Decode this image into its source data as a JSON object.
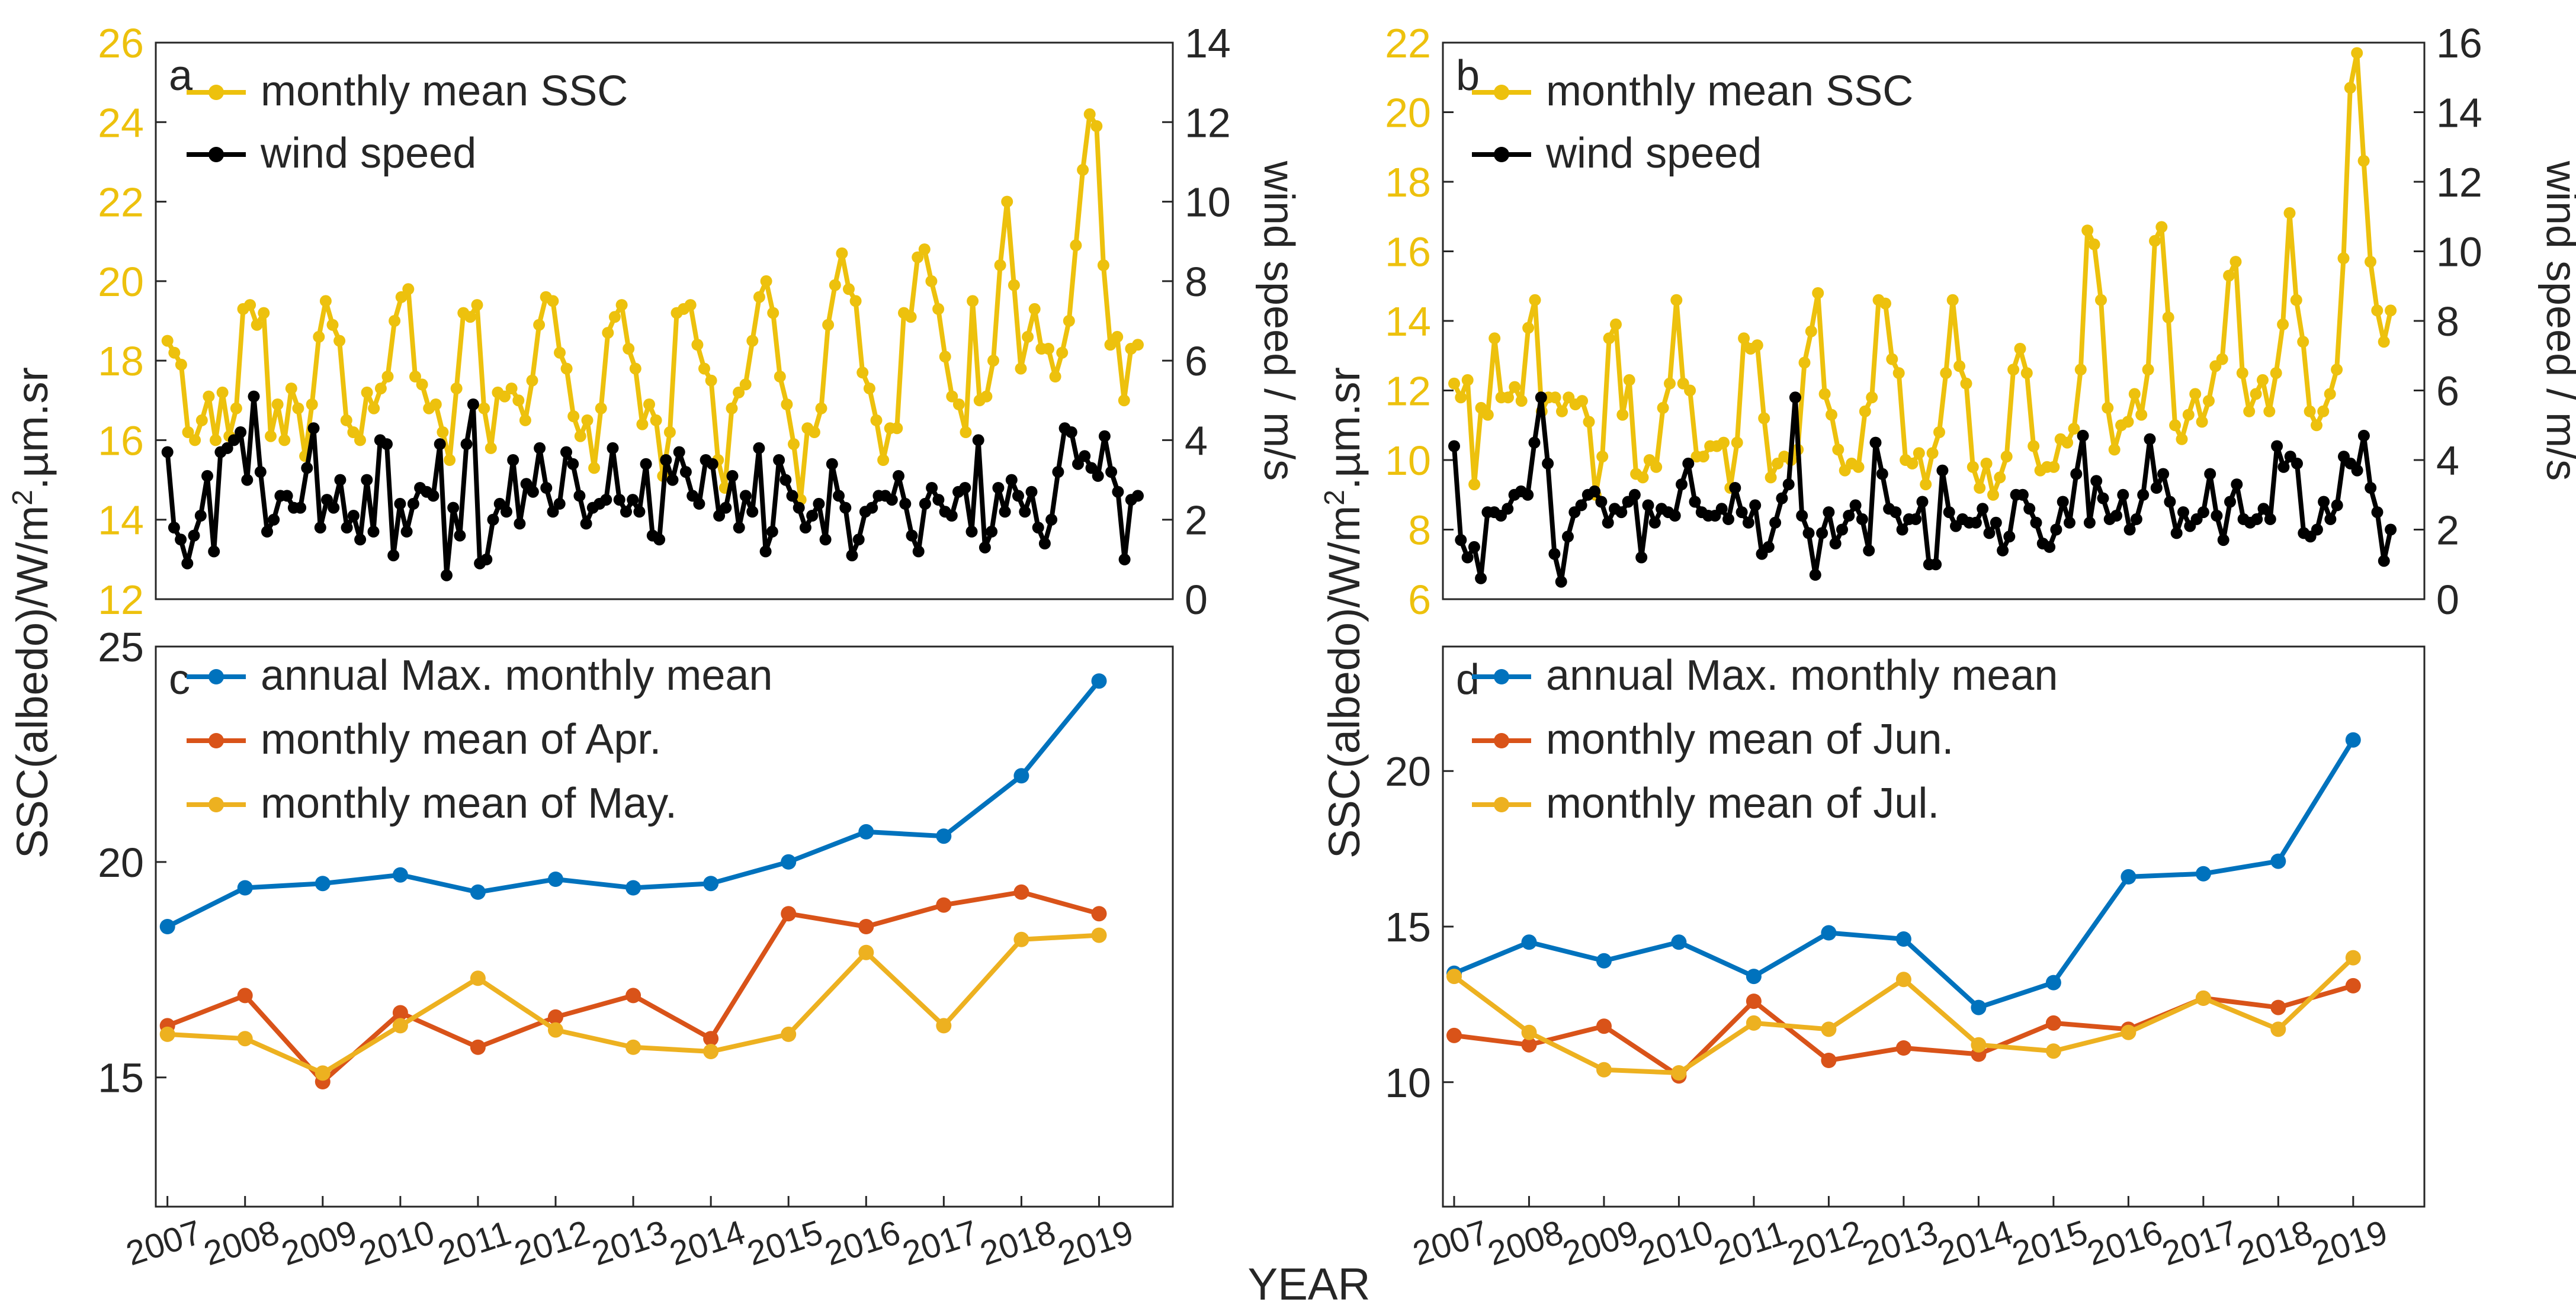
{
  "figure": {
    "xlabel": "YEAR",
    "ylabel": "SSC(albedo)/W/m2.µm.sr",
    "ylabel_main": "SSC(albedo)/W/m",
    "ylabel_sup": "2",
    "ylabel_tail": ".µm.sr",
    "years": [
      "2007",
      "2008",
      "2009",
      "2010",
      "2011",
      "2012",
      "2013",
      "2014",
      "2015",
      "2016",
      "2017",
      "2018",
      "2019"
    ]
  },
  "colors": {
    "ssc": "#EDC10D",
    "wind": "#000000",
    "max": "#0072BD",
    "jun_apr": "#D95319",
    "may_jul": "#EDB120",
    "axis": "#262626"
  },
  "chart_data": [
    {
      "panel": "a",
      "type": "line",
      "title": "",
      "x_range": [
        2006.85,
        2019.95
      ],
      "ylabel_left": "SSC(albedo)/W/m2.µm.sr",
      "ylabel_right": "wind speed / m/s",
      "ylim_left": [
        12,
        26
      ],
      "yticks_left": [
        12,
        14,
        16,
        18,
        20,
        22,
        24,
        26
      ],
      "ylim_right": [
        0,
        14
      ],
      "yticks_right": [
        0,
        2,
        4,
        6,
        8,
        10,
        12,
        14
      ],
      "legend": [
        "monthly mean SSC",
        "wind speed"
      ],
      "legend_location": "top-left",
      "series": [
        {
          "name": "monthly mean SSC",
          "axis": "left",
          "values": [
            18.5,
            18.2,
            17.9,
            16.2,
            16.0,
            16.5,
            17.1,
            16.0,
            17.2,
            16.1,
            16.8,
            19.3,
            19.4,
            18.9,
            19.2,
            16.1,
            16.9,
            16.0,
            17.3,
            16.8,
            15.6,
            16.9,
            18.6,
            19.5,
            18.9,
            18.5,
            16.5,
            16.2,
            16.0,
            17.2,
            16.8,
            17.3,
            17.6,
            19.0,
            19.6,
            19.8,
            17.6,
            17.4,
            16.8,
            16.9,
            16.2,
            15.5,
            17.3,
            19.2,
            19.1,
            19.4,
            16.8,
            15.8,
            17.2,
            17.1,
            17.3,
            17.0,
            16.5,
            17.5,
            18.9,
            19.6,
            19.5,
            18.2,
            17.8,
            16.6,
            16.1,
            16.5,
            15.3,
            16.8,
            18.7,
            19.1,
            19.4,
            18.3,
            17.8,
            16.4,
            16.9,
            16.5,
            15.1,
            16.2,
            19.2,
            19.3,
            19.4,
            18.4,
            17.8,
            17.5,
            15.5,
            14.8,
            16.8,
            17.2,
            17.4,
            18.5,
            19.6,
            20.0,
            19.2,
            17.6,
            16.9,
            15.9,
            14.5,
            16.3,
            16.2,
            16.8,
            18.9,
            19.9,
            20.7,
            19.8,
            19.5,
            17.7,
            17.3,
            16.5,
            15.5,
            16.3,
            16.3,
            19.2,
            19.1,
            20.6,
            20.8,
            20.0,
            19.3,
            18.1,
            17.1,
            16.9,
            16.2,
            19.5,
            17.0,
            17.1,
            18.0,
            20.4,
            22.0,
            19.9,
            17.8,
            18.6,
            19.3,
            18.3,
            18.3,
            17.6,
            18.2,
            19.0,
            20.9,
            22.8,
            24.2,
            23.9,
            20.4,
            18.4,
            18.6,
            17.0,
            18.3,
            18.4
          ]
        },
        {
          "name": "wind speed",
          "axis": "right",
          "values": [
            3.7,
            1.8,
            1.5,
            0.9,
            1.6,
            2.1,
            3.1,
            1.2,
            3.7,
            3.8,
            4.0,
            4.2,
            3.0,
            5.1,
            3.2,
            1.7,
            2.0,
            2.6,
            2.6,
            2.3,
            2.3,
            3.3,
            4.3,
            1.8,
            2.5,
            2.3,
            3.0,
            1.8,
            2.1,
            1.5,
            3.0,
            1.7,
            4.0,
            3.9,
            1.1,
            2.4,
            1.7,
            2.4,
            2.8,
            2.7,
            2.6,
            3.9,
            0.6,
            2.3,
            1.6,
            3.9,
            4.9,
            0.9,
            1.0,
            2.0,
            2.4,
            2.2,
            3.5,
            1.9,
            2.9,
            2.7,
            3.8,
            2.8,
            2.2,
            2.4,
            3.7,
            3.4,
            2.6,
            1.9,
            2.3,
            2.4,
            2.5,
            3.8,
            2.5,
            2.2,
            2.5,
            2.2,
            3.4,
            1.6,
            1.5,
            3.5,
            3.0,
            3.7,
            3.2,
            2.6,
            2.4,
            3.5,
            3.4,
            2.1,
            2.3,
            3.1,
            1.8,
            2.6,
            2.2,
            3.8,
            1.2,
            1.7,
            3.5,
            3.0,
            2.6,
            2.3,
            1.8,
            2.1,
            2.4,
            1.5,
            3.4,
            2.6,
            2.3,
            1.1,
            1.5,
            2.2,
            2.3,
            2.6,
            2.6,
            2.5,
            3.1,
            2.4,
            1.6,
            1.2,
            2.4,
            2.8,
            2.5,
            2.2,
            2.1,
            2.7,
            2.8,
            1.7,
            4.0,
            1.3,
            1.7,
            2.8,
            2.2,
            3.0,
            2.6,
            2.2,
            2.7,
            1.8,
            1.4,
            2.0,
            3.2,
            4.3,
            4.2,
            3.4,
            3.6,
            3.3,
            3.1,
            4.1,
            3.2,
            2.7,
            1.0,
            2.5,
            2.6
          ]
        }
      ]
    },
    {
      "panel": "b",
      "type": "line",
      "title": "",
      "x_range": [
        2006.85,
        2019.95
      ],
      "ylabel_left": "SSC(albedo)/W/m2.µm.sr",
      "ylabel_right": "wind speed / m/s",
      "ylim_left": [
        6,
        22
      ],
      "yticks_left": [
        6,
        8,
        10,
        12,
        14,
        16,
        18,
        20,
        22
      ],
      "ylim_right": [
        0,
        16
      ],
      "yticks_right": [
        0,
        2,
        4,
        6,
        8,
        10,
        12,
        14,
        16
      ],
      "legend": [
        "monthly mean SSC",
        "wind speed"
      ],
      "legend_location": "top-left",
      "series": [
        {
          "name": "monthly mean SSC",
          "axis": "left",
          "values": [
            12.2,
            11.8,
            12.3,
            9.3,
            11.5,
            11.3,
            13.5,
            11.8,
            11.8,
            12.1,
            11.7,
            13.8,
            14.6,
            11.4,
            11.8,
            11.8,
            11.4,
            11.8,
            11.6,
            11.7,
            11.1,
            9.0,
            10.1,
            13.5,
            13.9,
            11.3,
            12.3,
            9.6,
            9.5,
            10.0,
            9.8,
            11.5,
            12.2,
            14.6,
            12.2,
            12.0,
            10.1,
            10.1,
            10.4,
            10.4,
            10.5,
            9.2,
            10.5,
            13.5,
            13.2,
            13.3,
            11.2,
            9.5,
            9.9,
            10.1,
            10.0,
            10.3,
            12.8,
            13.7,
            14.8,
            11.9,
            11.3,
            10.3,
            9.7,
            9.9,
            9.8,
            11.4,
            11.8,
            14.6,
            14.5,
            12.9,
            12.5,
            10.0,
            9.9,
            10.2,
            9.3,
            10.2,
            10.8,
            12.5,
            14.6,
            12.7,
            12.2,
            9.8,
            9.2,
            9.9,
            9.0,
            9.5,
            10.1,
            12.6,
            13.2,
            12.5,
            10.4,
            9.7,
            9.8,
            9.8,
            10.6,
            10.5,
            10.9,
            12.6,
            16.6,
            16.2,
            14.6,
            11.5,
            10.3,
            11.0,
            11.1,
            11.9,
            11.3,
            12.6,
            16.3,
            16.7,
            14.1,
            11.0,
            10.6,
            11.3,
            11.9,
            11.1,
            11.7,
            12.7,
            12.9,
            15.3,
            15.7,
            12.5,
            11.4,
            11.9,
            12.3,
            11.4,
            12.5,
            13.9,
            17.1,
            14.6,
            13.4,
            11.4,
            11.0,
            11.4,
            11.9,
            12.6,
            15.8,
            20.7,
            21.7,
            18.6,
            15.7,
            14.3,
            13.4,
            14.3
          ]
        },
        {
          "name": "wind speed",
          "axis": "right",
          "values": [
            4.4,
            1.7,
            1.2,
            1.5,
            0.6,
            2.5,
            2.5,
            2.4,
            2.6,
            3.0,
            3.1,
            3.0,
            4.5,
            5.8,
            3.9,
            1.3,
            0.5,
            1.8,
            2.5,
            2.7,
            3.0,
            3.1,
            2.8,
            2.2,
            2.6,
            2.5,
            2.8,
            3.0,
            1.2,
            2.7,
            2.2,
            2.6,
            2.5,
            2.4,
            3.3,
            3.9,
            2.8,
            2.5,
            2.4,
            2.4,
            2.6,
            2.3,
            3.2,
            2.5,
            2.2,
            2.7,
            1.3,
            1.5,
            2.2,
            2.9,
            3.3,
            5.8,
            2.4,
            1.9,
            0.7,
            1.9,
            2.5,
            1.6,
            2.0,
            2.4,
            2.7,
            2.3,
            1.4,
            4.5,
            3.6,
            2.6,
            2.5,
            2.0,
            2.3,
            2.3,
            2.8,
            1.0,
            1.0,
            3.7,
            2.5,
            2.1,
            2.3,
            2.2,
            2.2,
            2.6,
            1.9,
            2.2,
            1.4,
            1.8,
            3.0,
            3.0,
            2.6,
            2.2,
            1.6,
            1.5,
            2.0,
            2.8,
            2.2,
            3.6,
            4.7,
            2.2,
            3.4,
            2.9,
            2.3,
            2.4,
            3.0,
            2.0,
            2.3,
            3.0,
            4.6,
            3.2,
            3.6,
            2.8,
            1.9,
            2.5,
            2.1,
            2.3,
            2.5,
            3.6,
            2.4,
            1.7,
            2.8,
            3.3,
            2.3,
            2.2,
            2.3,
            2.6,
            2.3,
            4.4,
            3.8,
            4.1,
            3.9,
            1.9,
            1.8,
            2.0,
            2.8,
            2.3,
            2.7,
            4.1,
            3.9,
            3.7,
            4.7,
            3.2,
            2.5,
            1.1,
            2.0
          ]
        }
      ]
    },
    {
      "panel": "c",
      "type": "line",
      "title": "",
      "x": [
        "2007",
        "2008",
        "2009",
        "2010",
        "2011",
        "2012",
        "2013",
        "2014",
        "2015",
        "2016",
        "2017",
        "2018",
        "2019"
      ],
      "x_range": [
        2006.85,
        2019.95
      ],
      "ylabel": "SSC(albedo)/W/m2.µm.sr",
      "ylim": [
        12,
        25
      ],
      "yticks": [
        15,
        20,
        25
      ],
      "legend": [
        "annual Max. monthly mean",
        "monthly mean of Apr.",
        "monthly mean of May."
      ],
      "legend_location": "top-left",
      "series": [
        {
          "name": "annual Max. monthly mean",
          "values": [
            18.5,
            19.4,
            19.5,
            19.7,
            19.3,
            19.6,
            19.4,
            19.5,
            20.0,
            20.7,
            20.6,
            22.0,
            24.2
          ]
        },
        {
          "name": "monthly mean of Apr.",
          "values": [
            16.2,
            16.9,
            14.9,
            16.5,
            15.7,
            16.4,
            16.9,
            15.9,
            18.8,
            18.5,
            19.0,
            19.3,
            18.8
          ]
        },
        {
          "name": "monthly mean of May.",
          "values": [
            16.0,
            15.9,
            15.1,
            16.2,
            17.3,
            16.1,
            15.7,
            15.6,
            16.0,
            17.9,
            16.2,
            18.2,
            18.3
          ]
        }
      ]
    },
    {
      "panel": "d",
      "type": "line",
      "title": "",
      "x": [
        "2007",
        "2008",
        "2009",
        "2010",
        "2011",
        "2012",
        "2013",
        "2014",
        "2015",
        "2016",
        "2017",
        "2018",
        "2019"
      ],
      "x_range": [
        2006.85,
        2019.95
      ],
      "ylabel": "SSC(albedo)/W/m2.µm.sr",
      "ylim": [
        6,
        24
      ],
      "yticks": [
        10,
        15,
        20
      ],
      "legend": [
        "annual Max. monthly mean",
        "monthly mean of Jun.",
        "monthly mean of Jul."
      ],
      "legend_location": "top-left",
      "series": [
        {
          "name": "annual Max. monthly mean",
          "values": [
            13.5,
            14.5,
            13.9,
            14.5,
            13.4,
            14.8,
            14.6,
            12.4,
            13.2,
            16.6,
            16.7,
            17.1,
            21.0
          ]
        },
        {
          "name": "monthly mean of Jun.",
          "values": [
            11.5,
            11.2,
            11.8,
            10.2,
            12.6,
            10.7,
            11.1,
            10.9,
            11.9,
            11.7,
            12.7,
            12.4,
            13.1
          ]
        },
        {
          "name": "monthly mean of Jul.",
          "values": [
            13.4,
            11.6,
            10.4,
            10.3,
            11.9,
            11.7,
            13.3,
            11.2,
            11.0,
            11.6,
            12.7,
            11.7,
            14.0
          ]
        }
      ]
    }
  ]
}
